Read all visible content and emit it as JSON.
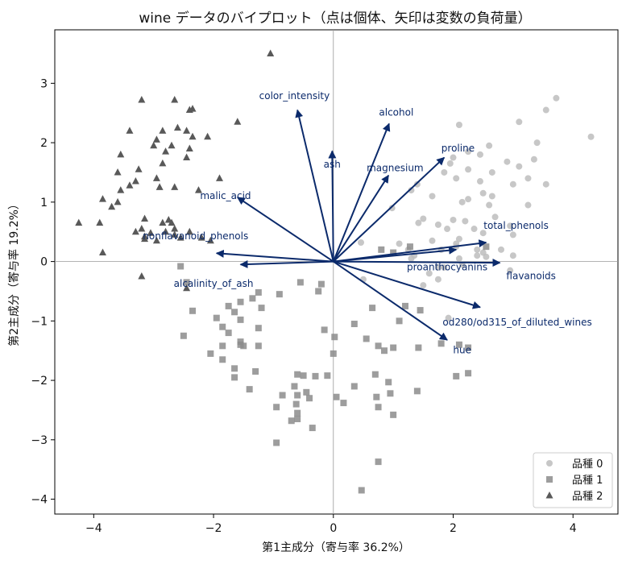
{
  "chart_data": {
    "type": "scatter",
    "title": "wine データのバイプロット（点は個体、矢印は変数の負荷量）",
    "xlabel": "第1主成分（寄与率 36.2%）",
    "ylabel": "第2主成分（寄与率 19.2%）",
    "xlim": [
      -4.65,
      4.75
    ],
    "ylim": [
      -4.25,
      3.9
    ],
    "xticks": [
      -4,
      -2,
      0,
      2,
      4
    ],
    "yticks": [
      -4,
      -3,
      -2,
      -1,
      0,
      1,
      2,
      3
    ],
    "xtick_labels": [
      "−4",
      "−2",
      "0",
      "2",
      "4"
    ],
    "ytick_labels": [
      "−4",
      "−3",
      "−2",
      "−1",
      "0",
      "1",
      "2",
      "3"
    ],
    "grid": false,
    "reference_lines": [
      0,
      0
    ],
    "legend_position": "bottom-right",
    "series": [
      {
        "name": "品種 0",
        "marker": "circle",
        "color": "#bdbdbd",
        "points": [
          [
            3.72,
            2.75
          ],
          [
            3.55,
            2.55
          ],
          [
            4.3,
            2.1
          ],
          [
            3.1,
            2.35
          ],
          [
            2.1,
            2.3
          ],
          [
            3.4,
            2.0
          ],
          [
            2.6,
            1.95
          ],
          [
            2.25,
            1.85
          ],
          [
            2.0,
            1.75
          ],
          [
            2.45,
            1.8
          ],
          [
            3.35,
            1.72
          ],
          [
            2.9,
            1.68
          ],
          [
            3.1,
            1.6
          ],
          [
            2.65,
            1.5
          ],
          [
            3.25,
            1.4
          ],
          [
            1.95,
            1.65
          ],
          [
            2.25,
            1.55
          ],
          [
            2.05,
            1.4
          ],
          [
            1.85,
            1.5
          ],
          [
            3.0,
            1.3
          ],
          [
            2.45,
            1.35
          ],
          [
            2.5,
            1.15
          ],
          [
            2.65,
            1.1
          ],
          [
            2.15,
            1.0
          ],
          [
            2.25,
            1.05
          ],
          [
            1.4,
            1.3
          ],
          [
            3.55,
            1.3
          ],
          [
            1.65,
            1.1
          ],
          [
            1.3,
            1.2
          ],
          [
            2.6,
            0.95
          ],
          [
            3.25,
            0.95
          ],
          [
            0.98,
            0.9
          ],
          [
            2.7,
            0.75
          ],
          [
            2.0,
            0.7
          ],
          [
            2.2,
            0.68
          ],
          [
            1.5,
            0.72
          ],
          [
            1.42,
            0.65
          ],
          [
            1.75,
            0.62
          ],
          [
            2.95,
            0.6
          ],
          [
            2.35,
            0.55
          ],
          [
            3.0,
            0.45
          ],
          [
            2.5,
            0.48
          ],
          [
            2.1,
            0.38
          ],
          [
            0.46,
            0.32
          ],
          [
            1.1,
            0.3
          ],
          [
            1.65,
            0.35
          ],
          [
            2.05,
            0.3
          ],
          [
            1.35,
            0.1
          ],
          [
            2.05,
            0.25
          ],
          [
            1.9,
            0.55
          ],
          [
            1.8,
            0.2
          ],
          [
            1.3,
            0.05
          ],
          [
            2.4,
            0.1
          ],
          [
            1.75,
            -0.1
          ],
          [
            2.15,
            -0.05
          ],
          [
            1.6,
            -0.2
          ],
          [
            1.75,
            -0.3
          ],
          [
            1.85,
            -0.1
          ],
          [
            2.95,
            -0.15
          ],
          [
            0.5,
            -0.3
          ],
          [
            1.25,
            0.2
          ],
          [
            2.4,
            0.2
          ],
          [
            2.5,
            0.15
          ],
          [
            3.0,
            0.1
          ],
          [
            2.1,
            0.05
          ],
          [
            1.5,
            -0.4
          ],
          [
            1.92,
            -0.95
          ],
          [
            2.8,
            0.2
          ],
          [
            2.55,
            0.08
          ]
        ]
      },
      {
        "name": "品種 1",
        "marker": "square",
        "color": "#8c8c8c",
        "points": [
          [
            -2.55,
            -0.08
          ],
          [
            -0.2,
            -0.38
          ],
          [
            1.28,
            0.25
          ],
          [
            1.0,
            0.15
          ],
          [
            0.8,
            0.2
          ],
          [
            2.55,
            0.25
          ],
          [
            -2.45,
            -0.35
          ],
          [
            -0.55,
            -0.35
          ],
          [
            -0.9,
            -0.55
          ],
          [
            -0.25,
            -0.5
          ],
          [
            -1.25,
            -0.52
          ],
          [
            -1.35,
            -0.62
          ],
          [
            -1.55,
            -0.68
          ],
          [
            -1.75,
            -0.75
          ],
          [
            -1.2,
            -0.78
          ],
          [
            -2.35,
            -0.83
          ],
          [
            -1.65,
            -0.85
          ],
          [
            -1.95,
            -0.95
          ],
          [
            -1.55,
            -0.98
          ],
          [
            -1.85,
            -1.1
          ],
          [
            -1.25,
            -1.12
          ],
          [
            -2.5,
            -1.25
          ],
          [
            -1.75,
            -1.2
          ],
          [
            -1.55,
            -1.35
          ],
          [
            -1.5,
            -1.42
          ],
          [
            -1.55,
            -1.4
          ],
          [
            -1.85,
            -1.42
          ],
          [
            -1.25,
            -1.42
          ],
          [
            -0.15,
            -1.15
          ],
          [
            0.02,
            -1.27
          ],
          [
            0.35,
            -1.05
          ],
          [
            0.65,
            -0.78
          ],
          [
            1.2,
            -0.75
          ],
          [
            1.45,
            -0.82
          ],
          [
            0.55,
            -1.3
          ],
          [
            0.75,
            -1.42
          ],
          [
            0.85,
            -1.5
          ],
          [
            1.0,
            -1.45
          ],
          [
            1.42,
            -1.45
          ],
          [
            1.8,
            -1.38
          ],
          [
            2.1,
            -1.4
          ],
          [
            0.0,
            -1.55
          ],
          [
            -2.05,
            -1.55
          ],
          [
            -1.85,
            -1.65
          ],
          [
            -1.65,
            -1.8
          ],
          [
            -1.3,
            -1.85
          ],
          [
            -1.65,
            -1.95
          ],
          [
            -0.6,
            -1.9
          ],
          [
            -0.5,
            -1.92
          ],
          [
            -0.3,
            -1.93
          ],
          [
            -0.1,
            -1.92
          ],
          [
            0.7,
            -1.9
          ],
          [
            0.35,
            -2.1
          ],
          [
            0.92,
            -2.03
          ],
          [
            2.05,
            -1.93
          ],
          [
            2.25,
            -1.88
          ],
          [
            1.4,
            -2.18
          ],
          [
            -1.4,
            -2.15
          ],
          [
            -0.65,
            -2.1
          ],
          [
            -0.45,
            -2.2
          ],
          [
            -0.6,
            -2.25
          ],
          [
            -0.4,
            -2.3
          ],
          [
            0.05,
            -2.28
          ],
          [
            -0.85,
            -2.25
          ],
          [
            -0.95,
            -2.45
          ],
          [
            0.72,
            -2.28
          ],
          [
            0.95,
            -2.22
          ],
          [
            0.17,
            -2.38
          ],
          [
            -0.62,
            -2.4
          ],
          [
            -0.6,
            -2.55
          ],
          [
            0.75,
            -2.45
          ],
          [
            -0.6,
            -2.65
          ],
          [
            -0.7,
            -2.68
          ],
          [
            -0.35,
            -2.8
          ],
          [
            1.0,
            -2.58
          ],
          [
            -0.95,
            -3.05
          ],
          [
            0.75,
            -3.37
          ],
          [
            0.47,
            -3.85
          ],
          [
            2.25,
            -1.45
          ],
          [
            1.1,
            -1.0
          ]
        ]
      },
      {
        "name": "品種 2",
        "marker": "triangle",
        "color": "#595959",
        "points": [
          [
            -1.05,
            3.5
          ],
          [
            -3.2,
            2.72
          ],
          [
            -2.65,
            2.72
          ],
          [
            -2.4,
            2.55
          ],
          [
            -2.35,
            2.57
          ],
          [
            -3.4,
            2.2
          ],
          [
            -2.85,
            2.2
          ],
          [
            -2.6,
            2.25
          ],
          [
            -2.45,
            2.2
          ],
          [
            -2.35,
            2.1
          ],
          [
            -2.1,
            2.1
          ],
          [
            -1.6,
            2.35
          ],
          [
            -2.95,
            2.05
          ],
          [
            -3.0,
            1.95
          ],
          [
            -2.7,
            1.95
          ],
          [
            -2.8,
            1.85
          ],
          [
            -2.4,
            1.9
          ],
          [
            -2.45,
            1.75
          ],
          [
            -3.25,
            1.55
          ],
          [
            -2.85,
            1.65
          ],
          [
            -3.55,
            1.8
          ],
          [
            -3.6,
            1.5
          ],
          [
            -3.3,
            1.35
          ],
          [
            -2.95,
            1.4
          ],
          [
            -2.9,
            1.25
          ],
          [
            -3.55,
            1.2
          ],
          [
            -3.4,
            1.28
          ],
          [
            -3.85,
            1.05
          ],
          [
            -2.65,
            1.25
          ],
          [
            -2.25,
            1.2
          ],
          [
            -1.9,
            1.4
          ],
          [
            -3.7,
            0.92
          ],
          [
            -3.6,
            1.0
          ],
          [
            -3.15,
            0.72
          ],
          [
            -2.85,
            0.65
          ],
          [
            -2.7,
            0.65
          ],
          [
            -2.8,
            0.5
          ],
          [
            -3.9,
            0.65
          ],
          [
            -4.25,
            0.65
          ],
          [
            -2.65,
            0.45
          ],
          [
            -2.55,
            0.4
          ],
          [
            -2.2,
            0.4
          ],
          [
            -2.05,
            0.35
          ],
          [
            -3.15,
            0.38
          ],
          [
            -2.95,
            0.35
          ],
          [
            -3.15,
            0.42
          ],
          [
            -3.05,
            0.48
          ],
          [
            -3.2,
            0.55
          ],
          [
            -3.3,
            0.5
          ],
          [
            -2.65,
            0.55
          ],
          [
            -2.4,
            0.5
          ],
          [
            -3.85,
            0.15
          ],
          [
            -3.2,
            -0.25
          ],
          [
            -2.45,
            -0.45
          ],
          [
            -2.75,
            0.7
          ]
        ]
      }
    ],
    "loadings": {
      "arrow_color": "#0b2a6b",
      "vectors": [
        {
          "name": "color_intensity",
          "x": -0.6,
          "y": 2.55
        },
        {
          "name": "alcohol",
          "x": 0.93,
          "y": 2.32
        },
        {
          "name": "ash",
          "x": -0.02,
          "y": 1.86
        },
        {
          "name": "magnesium",
          "x": 0.92,
          "y": 1.45
        },
        {
          "name": "proline",
          "x": 1.85,
          "y": 1.75
        },
        {
          "name": "malic_acid",
          "x": -1.6,
          "y": 1.08
        },
        {
          "name": "nonflavanoid_phenols",
          "x": -1.95,
          "y": 0.14
        },
        {
          "name": "alcalinity_of_ash",
          "x": -1.55,
          "y": -0.05
        },
        {
          "name": "total_phenols",
          "x": 2.55,
          "y": 0.32
        },
        {
          "name": "proanthocyanins",
          "x": 2.05,
          "y": 0.2
        },
        {
          "name": "flavanoids",
          "x": 2.78,
          "y": -0.02
        },
        {
          "name": "od280/od315_of_diluted_wines",
          "x": 2.45,
          "y": -0.77
        },
        {
          "name": "hue",
          "x": 1.9,
          "y": -1.32
        }
      ],
      "labels": [
        {
          "text": "color_intensity",
          "x": -0.65,
          "y": 2.78
        },
        {
          "text": "alcohol",
          "x": 1.05,
          "y": 2.5
        },
        {
          "text": "ash",
          "x": -0.02,
          "y": 1.63
        },
        {
          "text": "magnesium",
          "x": 1.03,
          "y": 1.57
        },
        {
          "text": "proline",
          "x": 2.08,
          "y": 1.9
        },
        {
          "text": "malic_acid",
          "x": -1.8,
          "y": 1.1
        },
        {
          "text": "nonflavanoid_phenols",
          "x": -2.3,
          "y": 0.42
        },
        {
          "text": "alcalinity_of_ash",
          "x": -2.0,
          "y": -0.38
        },
        {
          "text": "total_phenols",
          "x": 3.05,
          "y": 0.6
        },
        {
          "text": "proanthocyanins",
          "x": 1.9,
          "y": -0.1
        },
        {
          "text": "flavanoids",
          "x": 3.3,
          "y": -0.25
        },
        {
          "text": "od280/od315_of_diluted_wines",
          "x": 3.07,
          "y": -1.03
        },
        {
          "text": "hue",
          "x": 2.15,
          "y": -1.5
        }
      ]
    }
  }
}
